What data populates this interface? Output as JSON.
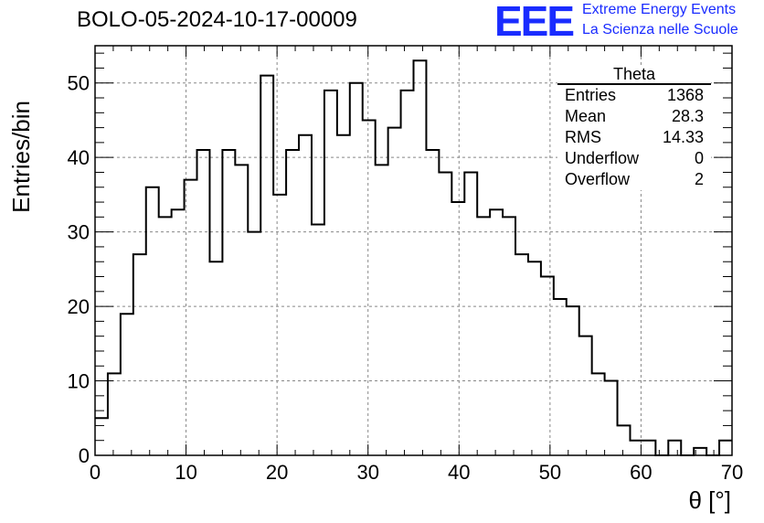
{
  "header": {
    "title": "BOLO-05-2024-10-17-00009",
    "logo_text": "EEE",
    "logo_line1": "Extreme Energy Events",
    "logo_line2": "La Scienza nelle Scuole"
  },
  "stats_box": {
    "title": "Theta",
    "rows": [
      {
        "label": "Entries",
        "value": "1368"
      },
      {
        "label": "Mean",
        "value": "28.3"
      },
      {
        "label": "RMS",
        "value": "14.33"
      },
      {
        "label": "Underflow",
        "value": "0"
      },
      {
        "label": "Overflow",
        "value": "2"
      }
    ]
  },
  "colors": {
    "accent": "#1a2cff",
    "line": "#000000",
    "grid": "#888888"
  },
  "chart_data": {
    "type": "histogram",
    "title": "BOLO-05-2024-10-17-00009",
    "xlabel": "θ [°]",
    "ylabel": "Entries/bin",
    "xlim": [
      0,
      70
    ],
    "ylim": [
      0,
      55
    ],
    "bin_width": 1.4,
    "bin_edges_start": 0,
    "values": [
      5,
      11,
      19,
      27,
      36,
      32,
      33,
      37,
      41,
      26,
      41,
      39,
      30,
      51,
      35,
      41,
      43,
      31,
      49,
      43,
      50,
      45,
      39,
      44,
      49,
      53,
      41,
      38,
      34,
      38,
      32,
      33,
      32,
      27,
      26,
      24,
      21,
      20,
      16,
      11,
      10,
      4,
      2,
      2,
      0,
      2,
      0,
      1,
      0,
      2
    ],
    "x_ticks": [
      0,
      10,
      20,
      30,
      40,
      50,
      60,
      70
    ],
    "y_ticks": [
      0,
      10,
      20,
      30,
      40,
      50
    ],
    "grid": true
  }
}
